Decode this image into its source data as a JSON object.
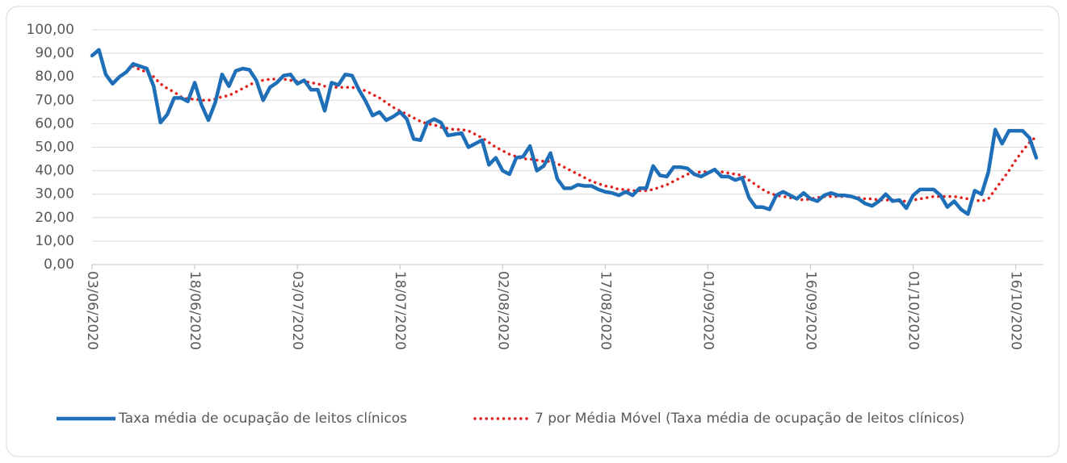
{
  "chart_data": {
    "type": "line",
    "categories": [
      "03/06/2020",
      null,
      null,
      null,
      null,
      null,
      null,
      null,
      null,
      null,
      null,
      null,
      null,
      null,
      null,
      "18/06/2020",
      null,
      null,
      null,
      null,
      null,
      null,
      null,
      null,
      null,
      null,
      null,
      null,
      null,
      null,
      "03/07/2020",
      null,
      null,
      null,
      null,
      null,
      null,
      null,
      null,
      null,
      null,
      null,
      null,
      null,
      null,
      "18/07/2020",
      null,
      null,
      null,
      null,
      null,
      null,
      null,
      null,
      null,
      null,
      null,
      null,
      null,
      null,
      "02/08/2020",
      null,
      null,
      null,
      null,
      null,
      null,
      null,
      null,
      null,
      null,
      null,
      null,
      null,
      null,
      "17/08/2020",
      null,
      null,
      null,
      null,
      null,
      null,
      null,
      null,
      null,
      null,
      null,
      null,
      null,
      null,
      "01/09/2020",
      null,
      null,
      null,
      null,
      null,
      null,
      null,
      null,
      null,
      null,
      null,
      null,
      null,
      null,
      "16/09/2020",
      null,
      null,
      null,
      null,
      null,
      null,
      null,
      null,
      null,
      null,
      null,
      null,
      null,
      null,
      "01/10/2020",
      null,
      null,
      null,
      null,
      null,
      null,
      null,
      null,
      null,
      null,
      null,
      null,
      null,
      null,
      "16/10/2020",
      null,
      null,
      null
    ],
    "series": [
      {
        "name": "Taxa média de ocupação de leitos clínicos",
        "color": "#1f6fb8",
        "style": "solid",
        "values": [
          89,
          91.5,
          81,
          77,
          80,
          82,
          85.5,
          84.5,
          83.5,
          76,
          60.5,
          64,
          71,
          71,
          69.5,
          77.5,
          68,
          61.5,
          69,
          81,
          76,
          82.5,
          83.5,
          83,
          78.5,
          70,
          75.5,
          77.5,
          80.5,
          81,
          77,
          78.5,
          74.5,
          74.5,
          65.5,
          77.5,
          76.5,
          81,
          80.5,
          74.5,
          69.5,
          63.5,
          65,
          61.5,
          63,
          65,
          62,
          53.5,
          53,
          60.5,
          62,
          60.5,
          55,
          55.5,
          56,
          50,
          51.5,
          53,
          42.5,
          45.5,
          40,
          38.5,
          45.5,
          46,
          50.5,
          40,
          42,
          47.5,
          36.5,
          32.5,
          32.5,
          34,
          33.5,
          33.5,
          32,
          31,
          30.5,
          29.5,
          31,
          29.5,
          32.5,
          32.5,
          42,
          38,
          37.5,
          41.5,
          41.5,
          41,
          38.5,
          37.5,
          39,
          40.5,
          37.5,
          37.5,
          36,
          37,
          28.5,
          24.5,
          24.5,
          23.5,
          29.5,
          31,
          29.5,
          28,
          30.5,
          28,
          27,
          29.5,
          30.5,
          29.5,
          29.5,
          29,
          28,
          26,
          25,
          27,
          30,
          27,
          27.5,
          24,
          29.5,
          32,
          32,
          32,
          29.5,
          24.5,
          27,
          23.5,
          21.5,
          31.5,
          30,
          39.5,
          57.5,
          51.5,
          57,
          57,
          57,
          54,
          45.5
        ]
      },
      {
        "name": "7 por Média Móvel (Taxa média de ocupação de leitos clínicos)",
        "color": "#e0201b",
        "style": "dotted",
        "values": [
          null,
          null,
          null,
          null,
          null,
          null,
          84.5,
          83,
          82,
          80,
          77,
          75,
          73.5,
          71.5,
          70.5,
          70.5,
          70,
          70,
          70.5,
          71.5,
          72,
          73.5,
          75,
          76.5,
          78,
          78.5,
          79,
          79,
          79,
          78.5,
          78,
          78,
          77.5,
          77,
          76,
          75.5,
          75.5,
          75.5,
          75.5,
          75,
          74,
          72.5,
          71,
          69,
          67,
          65.5,
          64,
          62.5,
          61,
          60,
          59.5,
          58.5,
          58,
          57.5,
          57.5,
          57,
          55.5,
          54,
          52,
          50,
          48.5,
          47,
          46,
          45,
          45,
          44.5,
          44,
          44,
          43,
          41.5,
          40,
          38.5,
          37,
          35.5,
          34.5,
          33.5,
          33,
          32,
          32,
          31.5,
          31.5,
          31.5,
          32,
          33,
          34,
          35.5,
          37,
          38.5,
          39,
          39.5,
          39.5,
          39.5,
          39.5,
          39,
          38.5,
          38,
          36,
          34,
          32,
          30.5,
          29.5,
          29,
          28.5,
          28,
          27.5,
          28,
          28.5,
          29,
          29,
          29,
          29,
          29,
          28.5,
          28,
          28,
          27.5,
          27.5,
          27.5,
          27,
          27,
          27.5,
          28,
          28.5,
          29,
          29,
          29,
          29,
          28.5,
          28,
          27.5,
          27,
          28,
          32,
          36,
          40,
          44.5,
          48.5,
          52,
          54.5
        ]
      }
    ],
    "ylim": [
      0,
      100
    ],
    "yticks": [
      {
        "value": 0,
        "label": "0,00"
      },
      {
        "value": 10,
        "label": "10,00"
      },
      {
        "value": 20,
        "label": "20,00"
      },
      {
        "value": 30,
        "label": "30,00"
      },
      {
        "value": 40,
        "label": "40,00"
      },
      {
        "value": 50,
        "label": "50,00"
      },
      {
        "value": 60,
        "label": "60,00"
      },
      {
        "value": 70,
        "label": "70,00"
      },
      {
        "value": 80,
        "label": "80,00"
      },
      {
        "value": 90,
        "label": "90,00"
      },
      {
        "value": 100,
        "label": "100,00"
      }
    ],
    "grid": true,
    "legend": "bottom"
  }
}
